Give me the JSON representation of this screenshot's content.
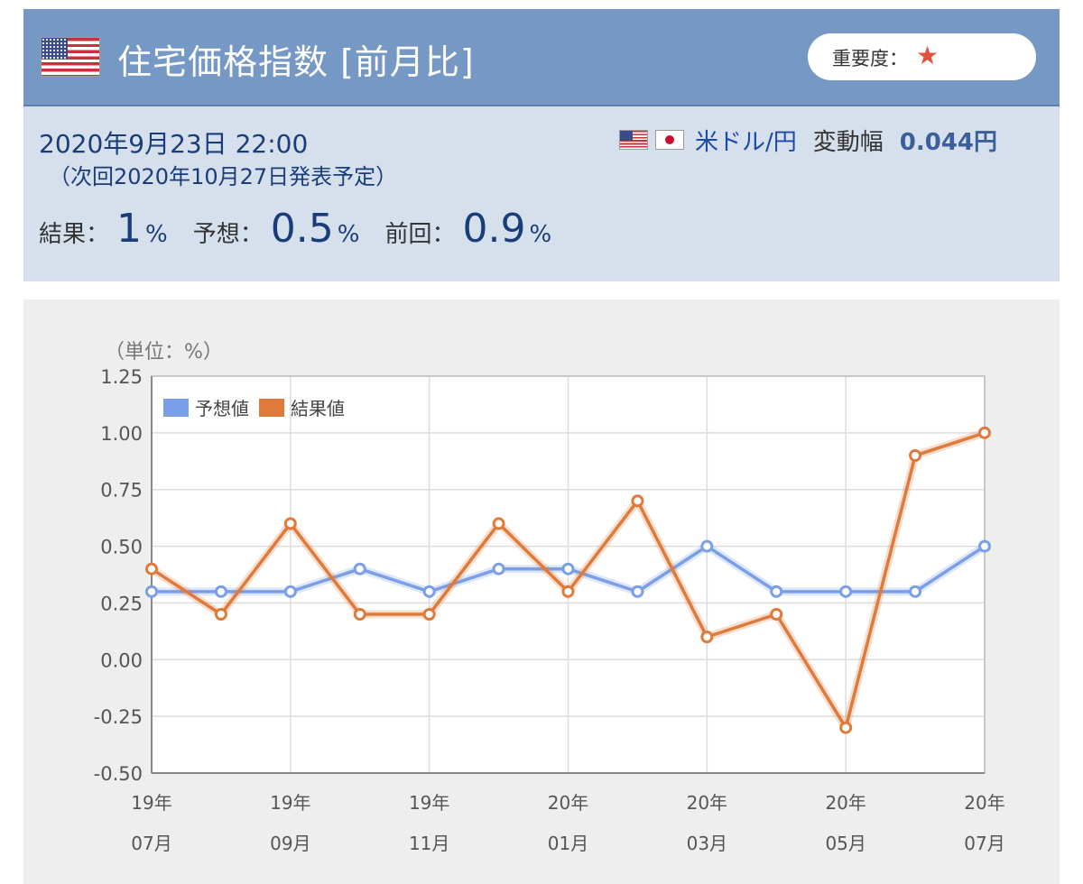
{
  "header": {
    "title": "住宅価格指数 [前月比]",
    "importance_label": "重要度：",
    "importance_star": "★"
  },
  "info": {
    "datetime": "2020年9月23日 22:00",
    "next_release": "（次回2020年10月27日発表予定）",
    "pair": "米ドル/円",
    "range_label": "変動幅",
    "range_value": "0.044円",
    "result_label": "結果：",
    "result_value": "1",
    "forecast_label": "予想：",
    "forecast_value": "0.5",
    "previous_label": "前回：",
    "previous_value": "0.9",
    "percent": "%"
  },
  "icons": {
    "country_flag": "us-flag-icon",
    "pair_flags": [
      "us-flag-icon",
      "jp-flag-icon"
    ],
    "star": "star-icon"
  },
  "colors": {
    "header_bg": "#7698c4",
    "info_bg": "#d6e0ec",
    "forecast": "#7a9ee8",
    "result": "#e07a3a",
    "star": "#e0533a"
  },
  "chart_data": {
    "type": "line",
    "unit_label": "（単位：%）",
    "x": [
      "19/07",
      "19/08",
      "19/09",
      "19/10",
      "19/11",
      "19/12",
      "20/01",
      "20/02",
      "20/03",
      "20/04",
      "20/05",
      "20/06",
      "20/07"
    ],
    "x_tick_labels": [
      {
        "index": 0,
        "line1": "19年",
        "line2": "07月"
      },
      {
        "index": 2,
        "line1": "19年",
        "line2": "09月"
      },
      {
        "index": 4,
        "line1": "19年",
        "line2": "11月"
      },
      {
        "index": 6,
        "line1": "20年",
        "line2": "01月"
      },
      {
        "index": 8,
        "line1": "20年",
        "line2": "03月"
      },
      {
        "index": 10,
        "line1": "20年",
        "line2": "05月"
      },
      {
        "index": 12,
        "line1": "20年",
        "line2": "07月"
      }
    ],
    "y_ticks": [
      "1.25",
      "1.00",
      "0.75",
      "0.50",
      "0.25",
      "0.00",
      "-0.25",
      "-0.50"
    ],
    "ylim": [
      -0.5,
      1.25
    ],
    "grid": true,
    "legend_position": "top-left",
    "series": [
      {
        "name": "予想値",
        "color": "#7a9ee8",
        "values": [
          0.3,
          0.3,
          0.3,
          0.4,
          0.3,
          0.4,
          0.4,
          0.3,
          0.5,
          0.3,
          0.3,
          0.3,
          0.5
        ]
      },
      {
        "name": "結果値",
        "color": "#e07a3a",
        "values": [
          0.4,
          0.2,
          0.6,
          0.2,
          0.2,
          0.6,
          0.3,
          0.7,
          0.1,
          0.2,
          -0.3,
          0.9,
          1.0
        ]
      }
    ]
  }
}
